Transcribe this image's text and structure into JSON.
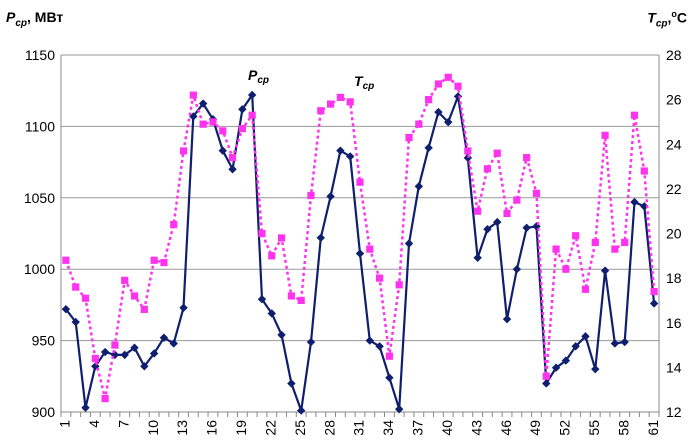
{
  "chart_data": {
    "type": "line",
    "left_axis": {
      "label_symbol": "P",
      "label_sub": "ср",
      "label_unit": ", МВт",
      "ylim": [
        900,
        1150
      ],
      "ticks": [
        900,
        950,
        1000,
        1050,
        1100,
        1150
      ]
    },
    "right_axis": {
      "label_symbol": "T",
      "label_sub": "ср",
      "label_sup": "o",
      "label_unit": "C",
      "ylim": [
        12,
        28
      ],
      "ticks": [
        12,
        14,
        16,
        18,
        20,
        22,
        24,
        26,
        28
      ]
    },
    "x": [
      1,
      2,
      3,
      4,
      5,
      6,
      7,
      8,
      9,
      10,
      11,
      12,
      13,
      14,
      15,
      16,
      17,
      18,
      19,
      20,
      21,
      22,
      23,
      24,
      25,
      26,
      27,
      28,
      29,
      30,
      31,
      32,
      33,
      34,
      35,
      36,
      37,
      38,
      39,
      40,
      41,
      42,
      43,
      44,
      45,
      46,
      47,
      48,
      49,
      50,
      51,
      52,
      53,
      54,
      55,
      56,
      57,
      58,
      59,
      60,
      61
    ],
    "x_tick_labels": [
      "1",
      "4",
      "7",
      "10",
      "13",
      "16",
      "19",
      "22",
      "25",
      "28",
      "31",
      "34",
      "37",
      "40",
      "43",
      "46",
      "49",
      "52",
      "55",
      "58",
      "61"
    ],
    "grid": true,
    "series": [
      {
        "name": "Pср",
        "annotation_symbol": "P",
        "annotation_sub": "ср",
        "axis": "left",
        "color": "#0f1f6e",
        "marker": "diamond",
        "line_style": "solid",
        "values": [
          972,
          963,
          903,
          932,
          942,
          940,
          940,
          945,
          932,
          941,
          952,
          948,
          973,
          1107,
          1116,
          1105,
          1083,
          1070,
          1112,
          1122,
          979,
          969,
          954,
          920,
          901,
          949,
          1022,
          1051,
          1083,
          1079,
          1011,
          950,
          946,
          924,
          902,
          1018,
          1058,
          1085,
          1110,
          1103,
          1121,
          1078,
          1008,
          1028,
          1033,
          965,
          1000,
          1029,
          1030,
          920,
          931,
          936,
          946,
          953,
          930,
          999,
          948,
          949,
          1047,
          1044,
          976
        ]
      },
      {
        "name": "Tср",
        "annotation_symbol": "T",
        "annotation_sub": "ср",
        "axis": "right",
        "color": "#ff33ee",
        "marker": "square",
        "line_style": "dotted",
        "values": [
          18.8,
          17.6,
          17.1,
          14.4,
          12.6,
          15.0,
          17.9,
          17.2,
          16.6,
          18.8,
          18.7,
          20.4,
          23.7,
          26.2,
          24.9,
          25.0,
          24.6,
          23.4,
          24.7,
          25.3,
          20.0,
          19.0,
          19.8,
          17.2,
          17.0,
          21.7,
          25.5,
          25.8,
          26.1,
          25.9,
          22.3,
          19.3,
          18.0,
          14.5,
          17.7,
          24.3,
          24.9,
          26.0,
          26.7,
          27.0,
          26.6,
          23.7,
          21.0,
          22.9,
          23.6,
          20.9,
          21.5,
          23.4,
          21.8,
          13.6,
          19.3,
          18.4,
          19.9,
          17.5,
          19.6,
          24.4,
          19.3,
          19.6,
          25.3,
          22.8,
          17.4
        ]
      }
    ]
  }
}
